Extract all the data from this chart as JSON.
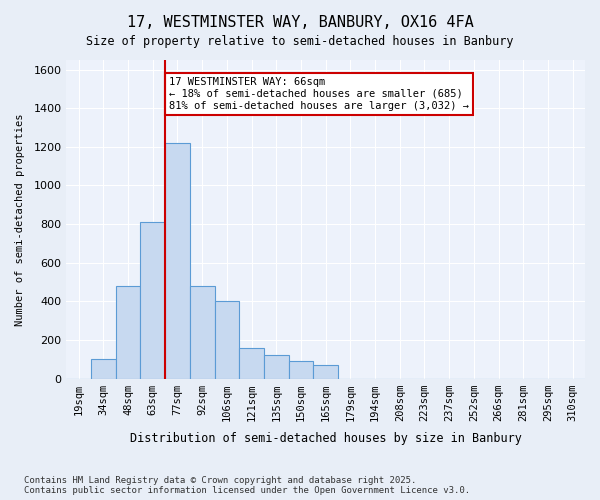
{
  "title1": "17, WESTMINSTER WAY, BANBURY, OX16 4FA",
  "title2": "Size of property relative to semi-detached houses in Banbury",
  "xlabel": "Distribution of semi-detached houses by size in Banbury",
  "ylabel": "Number of semi-detached properties",
  "categories": [
    "19sqm",
    "34sqm",
    "48sqm",
    "63sqm",
    "77sqm",
    "92sqm",
    "106sqm",
    "121sqm",
    "135sqm",
    "150sqm",
    "165sqm",
    "179sqm",
    "194sqm",
    "208sqm",
    "223sqm",
    "237sqm",
    "252sqm",
    "266sqm",
    "281sqm",
    "295sqm",
    "310sqm"
  ],
  "values": [
    0,
    100,
    480,
    810,
    1220,
    480,
    400,
    160,
    120,
    90,
    70,
    0,
    0,
    0,
    0,
    0,
    0,
    0,
    0,
    0,
    0
  ],
  "bar_color": "#c7d9f0",
  "bar_edge_color": "#5b9bd5",
  "vline_x": 3.5,
  "vline_color": "#cc0000",
  "annotation_text": "17 WESTMINSTER WAY: 66sqm\n← 18% of semi-detached houses are smaller (685)\n81% of semi-detached houses are larger (3,032) →",
  "annotation_box_color": "#cc0000",
  "ylim": [
    0,
    1650
  ],
  "yticks": [
    0,
    200,
    400,
    600,
    800,
    1000,
    1200,
    1400,
    1600
  ],
  "footer": "Contains HM Land Registry data © Crown copyright and database right 2025.\nContains public sector information licensed under the Open Government Licence v3.0.",
  "bg_color": "#e8eef7",
  "plot_bg_color": "#edf2fb"
}
